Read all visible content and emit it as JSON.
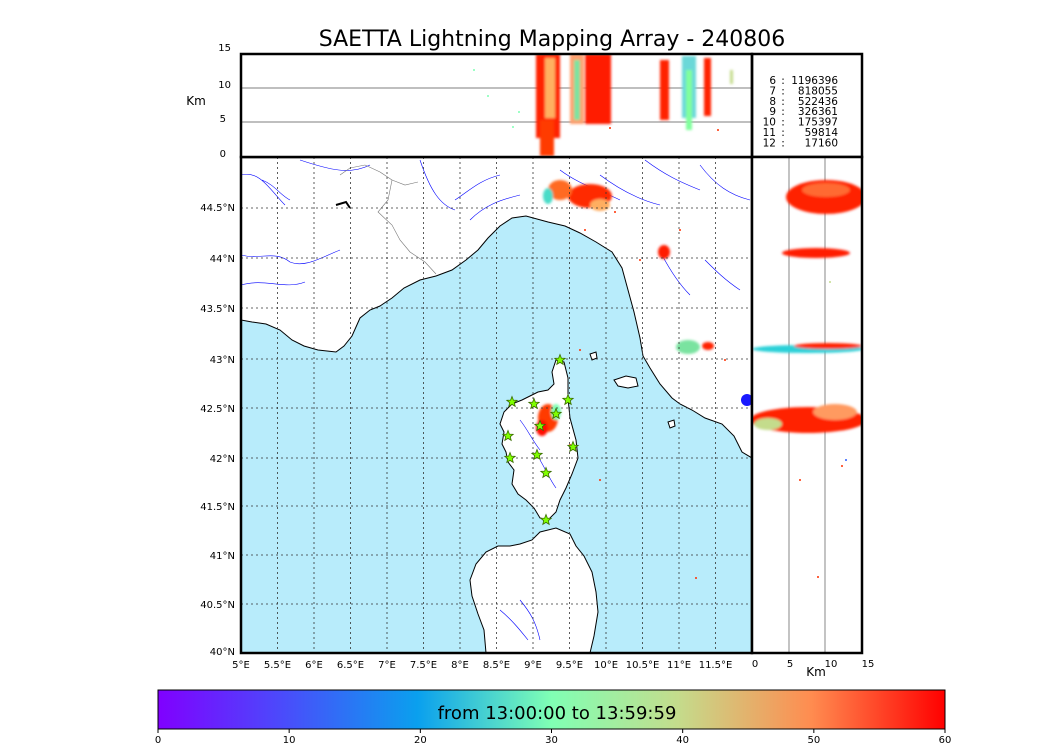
{
  "title": "SAETTA Lightning Mapping Array - 240806",
  "altitude_panel": {
    "ylabel": "Km",
    "yticks": [
      "15",
      "10",
      "5",
      "0"
    ]
  },
  "side_panel": {
    "xlabel": "Km",
    "xticks": [
      "0",
      "5",
      "10",
      "15"
    ]
  },
  "map": {
    "lon_ticks": [
      "5°E",
      "5.5°E",
      "6°E",
      "6.5°E",
      "7°E",
      "7.5°E",
      "8°E",
      "8.5°E",
      "9°E",
      "9.5°E",
      "10°E",
      "10.5°E",
      "11°E",
      "11.5°E"
    ],
    "lat_ticks": [
      "44.5°N",
      "44°N",
      "43.5°N",
      "43°N",
      "42.5°N",
      "42°N",
      "41.5°N",
      "41°N",
      "40.5°N",
      "40°N"
    ],
    "colors": {
      "sea": "#b8ecfb",
      "land": "#ffffff",
      "coast": "#000000",
      "rivers": "#0000ff"
    }
  },
  "station_counts": [
    {
      "stations": "6",
      "count": "1196396",
      "color": "#000000"
    },
    {
      "stations": "7",
      "count": "818055",
      "color": "#ff0000"
    },
    {
      "stations": "8",
      "count": "522436",
      "color": "#000000"
    },
    {
      "stations": "9",
      "count": "326361",
      "color": "#000000"
    },
    {
      "stations": "10",
      "count": "175397",
      "color": "#000000"
    },
    {
      "stations": "11",
      "count": "59814",
      "color": "#000000"
    },
    {
      "stations": "12",
      "count": "17160",
      "color": "#000000"
    }
  ],
  "colorbar": {
    "label": "from 13:00:00 to 13:59:59",
    "ticks": [
      "0",
      "10",
      "20",
      "30",
      "40",
      "50",
      "60"
    ],
    "colormap": "rainbow"
  },
  "stations_marker": {
    "icon": "star-icon",
    "fill": "#80ff00",
    "stroke": "#3a6b00"
  }
}
